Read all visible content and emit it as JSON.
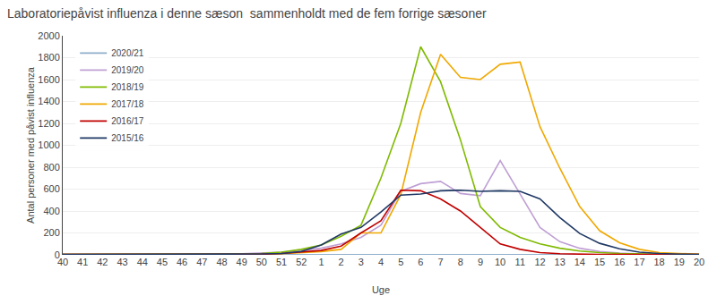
{
  "chart_data": {
    "type": "line",
    "title": "Laboratoriepåvist influenza i denne sæson  sammenholdt med de fem forrige sæsoner",
    "xlabel": "Uge",
    "ylabel": "Antal personer med påvist influenza",
    "categories": [
      "40",
      "41",
      "42",
      "43",
      "44",
      "45",
      "46",
      "47",
      "48",
      "49",
      "50",
      "51",
      "52",
      "1",
      "2",
      "3",
      "4",
      "5",
      "6",
      "7",
      "8",
      "9",
      "10",
      "11",
      "12",
      "13",
      "14",
      "15",
      "16",
      "17",
      "18",
      "19",
      "20"
    ],
    "series": [
      {
        "name": "2020/21",
        "color": "#8eaecb",
        "values": [
          2,
          2,
          2,
          2,
          2,
          2,
          2,
          2,
          2,
          2,
          2,
          2,
          2,
          2,
          2,
          2,
          2,
          2,
          2,
          2,
          2,
          2,
          2,
          2,
          2,
          2,
          2,
          2,
          2,
          2,
          2,
          2,
          2
        ]
      },
      {
        "name": "2019/20",
        "color": "#bf9fd4",
        "values": [
          3,
          3,
          3,
          3,
          3,
          3,
          5,
          5,
          8,
          10,
          15,
          25,
          40,
          60,
          100,
          160,
          270,
          580,
          650,
          670,
          560,
          540,
          860,
          560,
          250,
          120,
          60,
          30,
          15,
          8,
          5,
          3,
          3
        ]
      },
      {
        "name": "2018/19",
        "color": "#7fba00",
        "values": [
          3,
          3,
          3,
          3,
          3,
          3,
          3,
          3,
          5,
          8,
          12,
          25,
          50,
          90,
          170,
          270,
          700,
          1200,
          1900,
          1580,
          1050,
          440,
          250,
          160,
          100,
          60,
          35,
          20,
          12,
          8,
          5,
          3,
          3
        ]
      },
      {
        "name": "2017/18",
        "color": "#f0a800",
        "values": [
          3,
          3,
          3,
          3,
          3,
          3,
          3,
          3,
          3,
          5,
          8,
          10,
          20,
          30,
          50,
          200,
          200,
          550,
          1300,
          1830,
          1620,
          1600,
          1740,
          1760,
          1170,
          790,
          440,
          220,
          110,
          50,
          20,
          10,
          5
        ]
      },
      {
        "name": "2016/17",
        "color": "#c00000",
        "values": [
          3,
          3,
          3,
          3,
          3,
          3,
          3,
          3,
          3,
          3,
          5,
          12,
          25,
          40,
          80,
          200,
          310,
          590,
          585,
          510,
          400,
          250,
          100,
          50,
          20,
          10,
          5,
          3,
          3,
          3,
          3,
          3,
          3
        ]
      },
      {
        "name": "2015/16",
        "color": "#1f3864",
        "values": [
          3,
          3,
          3,
          3,
          3,
          3,
          3,
          3,
          3,
          3,
          8,
          12,
          30,
          90,
          190,
          250,
          390,
          545,
          555,
          585,
          590,
          580,
          585,
          580,
          510,
          340,
          195,
          105,
          55,
          25,
          12,
          6,
          3
        ]
      }
    ],
    "ylim": [
      0,
      2000
    ],
    "yticks": [
      0,
      200,
      400,
      600,
      800,
      1000,
      1200,
      1400,
      1600,
      1800,
      2000
    ],
    "grid": true,
    "legend": "upper left"
  }
}
